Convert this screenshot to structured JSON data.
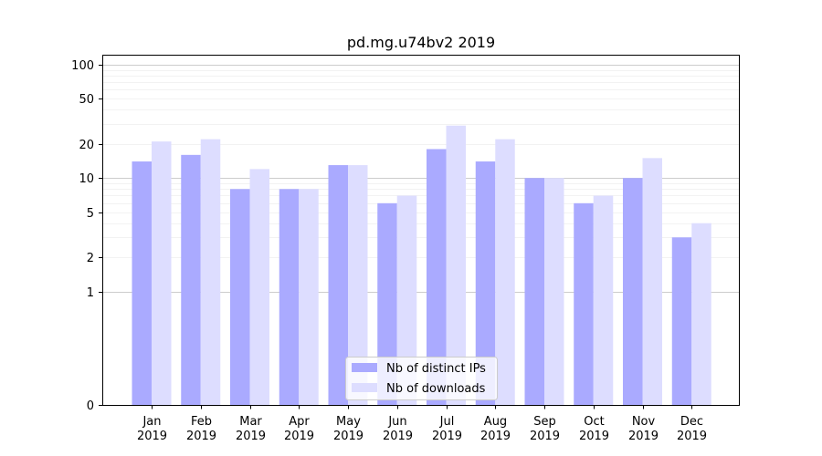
{
  "chart_data": {
    "type": "bar",
    "title": "pd.mg.u74bv2 2019",
    "xlabel": "",
    "ylabel": "",
    "yscale": "symlog",
    "ylim": [
      0,
      120
    ],
    "yticks": [
      0,
      1,
      2,
      5,
      10,
      20,
      50,
      100
    ],
    "ytick_labels": [
      "0",
      "1",
      "2",
      "5",
      "10",
      "20",
      "50",
      "100"
    ],
    "categories": [
      [
        "Jan",
        "2019"
      ],
      [
        "Feb",
        "2019"
      ],
      [
        "Mar",
        "2019"
      ],
      [
        "Apr",
        "2019"
      ],
      [
        "May",
        "2019"
      ],
      [
        "Jun",
        "2019"
      ],
      [
        "Jul",
        "2019"
      ],
      [
        "Aug",
        "2019"
      ],
      [
        "Sep",
        "2019"
      ],
      [
        "Oct",
        "2019"
      ],
      [
        "Nov",
        "2019"
      ],
      [
        "Dec",
        "2019"
      ]
    ],
    "series": [
      {
        "name": "Nb of distinct IPs",
        "color": "#aaaaff",
        "values": [
          14,
          16,
          8,
          8,
          13,
          6,
          18,
          14,
          10,
          6,
          10,
          3
        ]
      },
      {
        "name": "Nb of downloads",
        "color": "#ddddff",
        "values": [
          21,
          22,
          12,
          8,
          13,
          7,
          29,
          22,
          10,
          7,
          15,
          4
        ]
      }
    ],
    "legend_position": "lower-center",
    "grid": true
  }
}
